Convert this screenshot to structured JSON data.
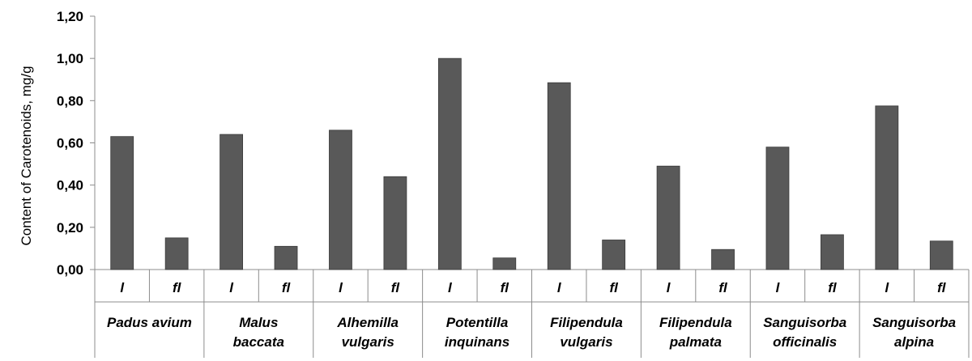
{
  "chart_data": {
    "type": "bar",
    "title": "",
    "xlabel": "",
    "ylabel": "Content of Carotenoids, mg/g",
    "ylim": [
      0,
      1.2
    ],
    "yticks": [
      "0,00",
      "0,20",
      "0,40",
      "0,60",
      "0,80",
      "1,00",
      "1,20"
    ],
    "grid": false,
    "legend": "none",
    "bar_color": "#595959",
    "groups": [
      {
        "line1": "Padus avium",
        "line2": "",
        "categories": [
          "l",
          "fl"
        ],
        "values": [
          0.63,
          0.15
        ]
      },
      {
        "line1": "Malus",
        "line2": "baccata",
        "categories": [
          "l",
          "fl"
        ],
        "values": [
          0.64,
          0.11
        ]
      },
      {
        "line1": "Alhemilla",
        "line2": "vulgaris",
        "categories": [
          "l",
          "fl"
        ],
        "values": [
          0.66,
          0.44
        ]
      },
      {
        "line1": "Potentilla",
        "line2": "inquinans",
        "categories": [
          "l",
          "fl"
        ],
        "values": [
          1.0,
          0.055
        ]
      },
      {
        "line1": "Filipendula",
        "line2": "vulgaris",
        "categories": [
          "l",
          "fl"
        ],
        "values": [
          0.885,
          0.14
        ]
      },
      {
        "line1": "Filipendula",
        "line2": "palmata",
        "categories": [
          "l",
          "fl"
        ],
        "values": [
          0.49,
          0.095
        ]
      },
      {
        "line1": "Sanguisorba",
        "line2": "officinalis",
        "categories": [
          "l",
          "fl"
        ],
        "values": [
          0.58,
          0.165
        ]
      },
      {
        "line1": "Sanguisorba",
        "line2": "alpina",
        "categories": [
          "l",
          "fl"
        ],
        "values": [
          0.775,
          0.135
        ]
      }
    ]
  }
}
